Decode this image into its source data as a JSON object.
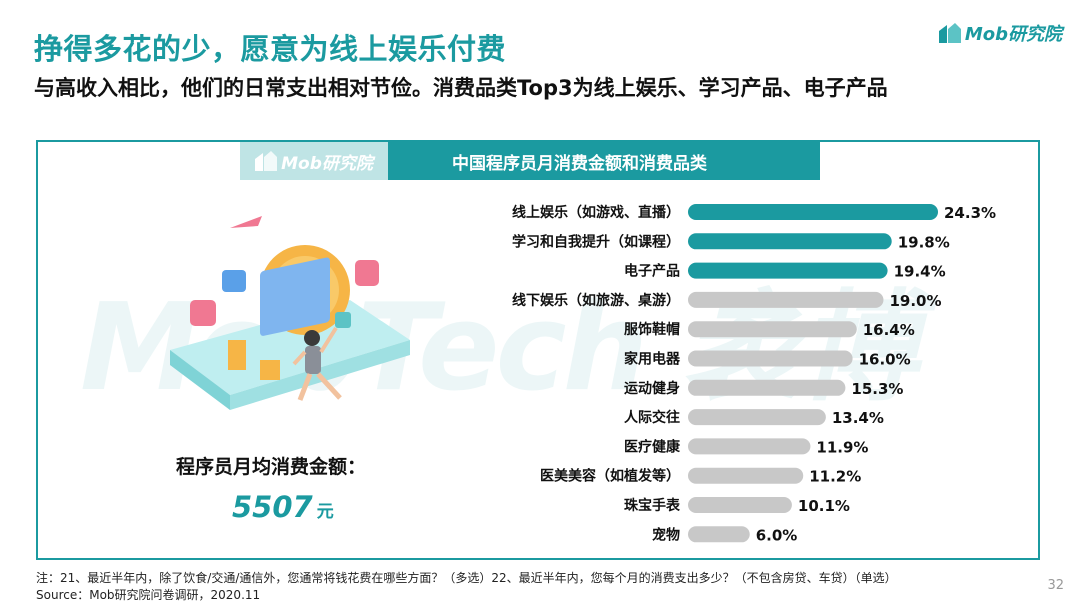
{
  "title": "挣得多花的少，愿意为线上娱乐付费",
  "subtitle": "与高收入相比，他们的日常支出相对节俭。消费品类Top3为线上娱乐、学习产品、电子产品",
  "logo_text": "Mob研究院",
  "watermark_text": "MobTech 袤博",
  "banner": {
    "logo_text": "Mob研究院",
    "title": "中国程序员月消费金额和消费品类"
  },
  "amount": {
    "label": "程序员月均消费金额：",
    "value": "5507",
    "unit": "元"
  },
  "footnote": {
    "note": "注：21、最近半年内，除了饮食/交通/通信外，您通常将钱花费在哪些方面？（多选）22、最近半年内，您每个月的消费支出多少？（不包含房贷、车贷）（单选）",
    "source": "Source：Mob研究院问卷调研，2020.11"
  },
  "page_number": "32",
  "colors": {
    "accent": "#1b9aa0",
    "gray_bar": "#c8c8c8",
    "text": "#111111"
  },
  "chart_data": {
    "type": "bar",
    "orientation": "horizontal",
    "title": "中国程序员月消费金额和消费品类",
    "categories": [
      "线上娱乐（如游戏、直播）",
      "学习和自我提升（如课程）",
      "电子产品",
      "线下娱乐（如旅游、桌游）",
      "服饰鞋帽",
      "家用电器",
      "运动健身",
      "人际交往",
      "医疗健康",
      "医美美容（如植发等）",
      "珠宝手表",
      "宠物"
    ],
    "values": [
      24.3,
      19.8,
      19.4,
      19.0,
      16.4,
      16.0,
      15.3,
      13.4,
      11.9,
      11.2,
      10.1,
      6.0
    ],
    "value_labels": [
      "24.3%",
      "19.8%",
      "19.4%",
      "19.0%",
      "16.4%",
      "16.0%",
      "15.3%",
      "13.4%",
      "11.9%",
      "11.2%",
      "10.1%",
      "6.0%"
    ],
    "highlight_top": 3,
    "xlim": [
      0,
      24.3
    ],
    "grid": false,
    "legend": "none"
  }
}
